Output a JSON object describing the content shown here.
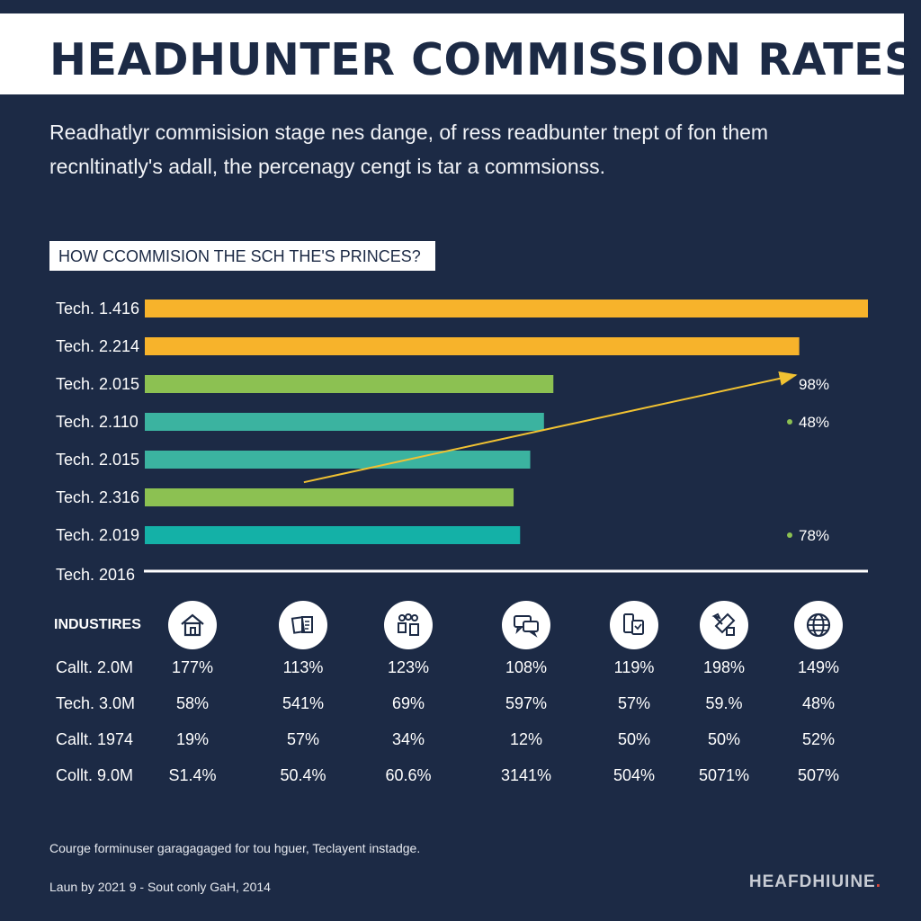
{
  "header": {
    "title": "HEADHUNTER COMMISSION RATES",
    "intro_line1": "Readhatlyr commisision stage nes dange, of ress readbunter tnept of fon them",
    "intro_line2": "recnltinatly's adall, the percenagy cengt is tar a commsionss."
  },
  "question": "HOW CCOMMISION THE SCH THE'S PRINCES?",
  "chart_data": {
    "type": "bar",
    "orientation": "horizontal",
    "categories": [
      "Tech. 1.416",
      "Tech. 2.214",
      "Tech. 2.015",
      "Tech. 2.110",
      "Tech. 2.015",
      "Tech. 2.316",
      "Tech. 2.019"
    ],
    "values": [
      100,
      90.5,
      56.5,
      55.2,
      53.3,
      51,
      51.9
    ],
    "colors": [
      "#f7b32b",
      "#f7b32b",
      "#8cc152",
      "#3bb3a0",
      "#3bb3a0",
      "#8cc152",
      "#14b1a7"
    ],
    "xlim": [
      0,
      100
    ],
    "baseline_label": "Tech. 2016",
    "callouts": [
      {
        "label": "98%",
        "row": 2,
        "marker": false
      },
      {
        "label": "48%",
        "row": 3,
        "marker": true,
        "marker_color": "#8cc152"
      },
      {
        "label": "78%",
        "row": 6,
        "marker": true,
        "marker_color": "#8cc152"
      }
    ],
    "trend_arrow": {
      "from_row": 4.6,
      "from_value": 22,
      "to_row": 2,
      "to_value": 90,
      "color": "#f1c232"
    },
    "legend": "none",
    "grid": false
  },
  "industries": {
    "label": "INDUSTIRES",
    "icons": [
      "house-icon",
      "documents-icon",
      "people-icon",
      "chat-icon",
      "devices-icon",
      "tools-icon",
      "globe-icon"
    ],
    "rows": [
      {
        "label": "Callt. 2.0M",
        "values": [
          "177%",
          "113%",
          "123%",
          "108%",
          "119%",
          "198%",
          "149%"
        ]
      },
      {
        "label": "Tech. 3.0M",
        "values": [
          "58%",
          "541%",
          "69%",
          "597%",
          "57%",
          "59.%",
          "48%"
        ]
      },
      {
        "label": "Callt. 1974",
        "values": [
          "19%",
          "57%",
          "34%",
          "12%",
          "50%",
          "50%",
          "52%"
        ]
      },
      {
        "label": "Collt. 9.0M",
        "values": [
          "S1.4%",
          "50.4%",
          "60.6%",
          "3141%",
          "504%",
          "5071%",
          "507%"
        ]
      }
    ]
  },
  "footer": {
    "footnote": "Courge forminuser garagagaged for tou hguer, Teclayent instadge.",
    "credit": "Laun by 2021 9 - Sout conly GaH, 2014",
    "brand": "HEAFDHIUINE",
    "brand_dot": "."
  }
}
